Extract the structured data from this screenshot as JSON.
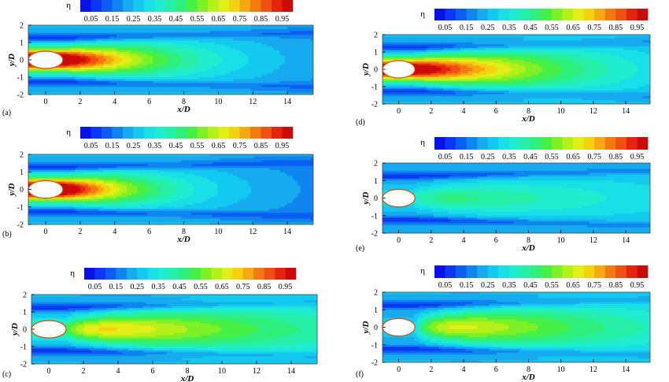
{
  "chart_data": {
    "type": "heatmap",
    "symbol": "η",
    "colorbar": {
      "levels": [
        0.0,
        0.05,
        0.1,
        0.15,
        0.2,
        0.25,
        0.3,
        0.35,
        0.4,
        0.45,
        0.5,
        0.55,
        0.6,
        0.65,
        0.7,
        0.75,
        0.8,
        0.85,
        0.9,
        0.95,
        1.0
      ],
      "tick_labels": [
        "0.05",
        "0.15",
        "0.25",
        "0.35",
        "0.45",
        "0.55",
        "0.65",
        "0.75",
        "0.85",
        "0.95"
      ],
      "colors": [
        "#0a10e8",
        "#0b37f5",
        "#0c5ef2",
        "#0f85ef",
        "#16aaef",
        "#13c9ef",
        "#19dfe6",
        "#20ecd0",
        "#26f0a8",
        "#2ef07a",
        "#46f046",
        "#7ef026",
        "#b4f01a",
        "#e1ef16",
        "#f5d210",
        "#f5a810",
        "#f27a10",
        "#ef4f10",
        "#e52410",
        "#cc0a0a"
      ]
    },
    "x_ticks": [
      "0",
      "2",
      "4",
      "6",
      "8",
      "10",
      "12",
      "14"
    ],
    "y_ticks": [
      "2",
      "1",
      "0",
      "-1",
      "-2"
    ],
    "xlabel": "x/D",
    "ylabel": "y/D",
    "xlim": [
      -1,
      15.5
    ],
    "ylim": [
      -2,
      2
    ],
    "panels": [
      {
        "label": "(a)",
        "peak": 0.95,
        "decay": 5.5,
        "near_gap": 0.0,
        "wall_band": 0.1
      },
      {
        "label": "(b)",
        "peak": 0.95,
        "decay": 4.5,
        "near_gap": 0.0,
        "wall_band": 0.1
      },
      {
        "label": "(c)",
        "peak": 0.62,
        "decay": 18.0,
        "near_gap": 0.6,
        "wall_band": 0.07
      },
      {
        "label": "(d)",
        "peak": 0.9,
        "decay": 9.0,
        "near_gap": 0.0,
        "wall_band": 0.1
      },
      {
        "label": "(e)",
        "peak": 0.3,
        "decay": 25.0,
        "near_gap": 0.5,
        "wall_band": 0.06
      },
      {
        "label": "(f)",
        "peak": 0.6,
        "decay": 16.0,
        "near_gap": 0.9,
        "wall_band": 0.08
      }
    ]
  }
}
